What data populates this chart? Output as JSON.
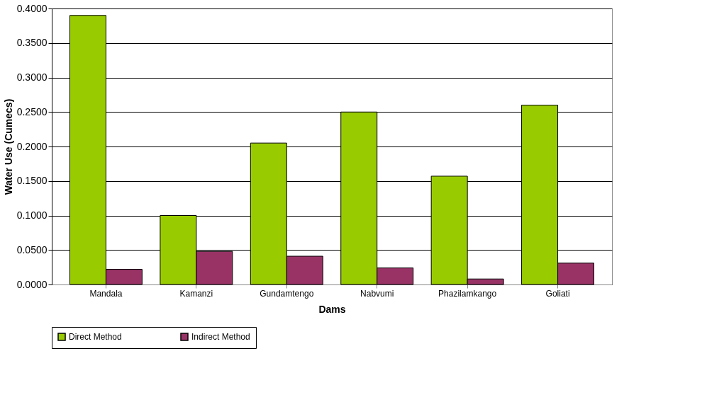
{
  "chart_data": {
    "type": "bar",
    "xlabel": "Dams",
    "ylabel": "Water Use (Cumecs)",
    "categories": [
      "Mandala",
      "Kamanzi",
      "Gundamtengo",
      "Nabvumi",
      "Phazilamkango",
      "Goliati"
    ],
    "series": [
      {
        "name": "Direct Method",
        "color": "#99cc00",
        "values": [
          0.39,
          0.1,
          0.205,
          0.25,
          0.157,
          0.26
        ]
      },
      {
        "name": "Indirect Method",
        "color": "#993366",
        "values": [
          0.022,
          0.048,
          0.041,
          0.024,
          0.008,
          0.031
        ]
      }
    ],
    "ylim": [
      0,
      0.4
    ],
    "yticks": [
      {
        "value": 0,
        "label": "0.0000"
      },
      {
        "value": 0.05,
        "label": "0.0500"
      },
      {
        "value": 0.1,
        "label": "0.1000"
      },
      {
        "value": 0.15,
        "label": "0.1500"
      },
      {
        "value": 0.2,
        "label": "0.2000"
      },
      {
        "value": 0.25,
        "label": "0.2500"
      },
      {
        "value": 0.3,
        "label": "0.3000"
      },
      {
        "value": 0.35,
        "label": "0.3500"
      },
      {
        "value": 0.4,
        "label": "0.4000"
      }
    ],
    "grid": "y",
    "legend": "bottom"
  }
}
